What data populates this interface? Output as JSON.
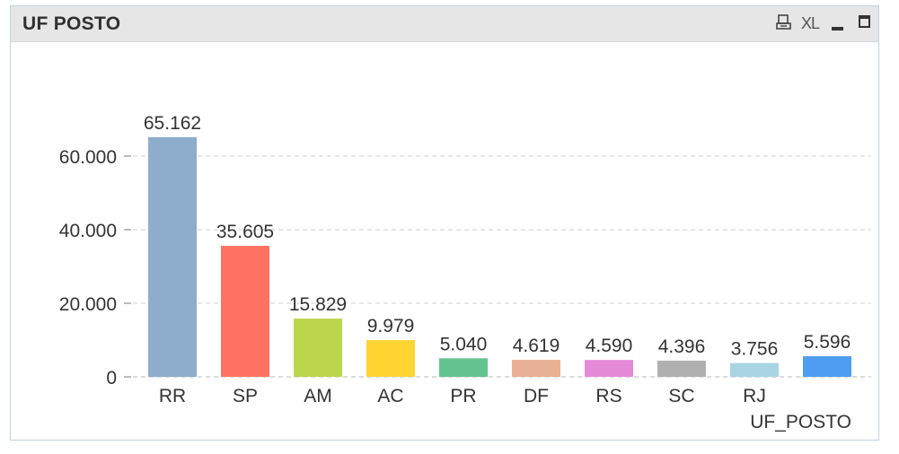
{
  "window": {
    "title": "UF POSTO",
    "xl_label": "XL",
    "print_icon": "print-icon",
    "minimize_icon": "minimize-icon",
    "maximize_icon": "maximize-icon"
  },
  "chart_data": {
    "type": "bar",
    "title": "UF POSTO",
    "xlabel": "UF_POSTO",
    "ylabel": "",
    "categories": [
      "RR",
      "SP",
      "AM",
      "AC",
      "PR",
      "DF",
      "RS",
      "SC",
      "RJ",
      ""
    ],
    "values": [
      65162,
      35605,
      15829,
      9979,
      5040,
      4619,
      4590,
      4396,
      3756,
      5596
    ],
    "value_labels": [
      "65.162",
      "35.605",
      "15.829",
      "9.979",
      "5.040",
      "4.619",
      "4.590",
      "4.396",
      "3.756",
      "5.596"
    ],
    "colors": [
      "#8eaccc",
      "#ff7262",
      "#bcd64c",
      "#fed531",
      "#63c390",
      "#e8b094",
      "#e48ad6",
      "#b0b0b0",
      "#a8d4e4",
      "#4e9df0"
    ],
    "ylim": [
      0,
      65162
    ],
    "yticks": [
      0,
      20000,
      40000,
      60000
    ],
    "ytick_labels": [
      "0",
      "20.000",
      "40.000",
      "60.000"
    ],
    "grid": true,
    "legend": "none"
  }
}
